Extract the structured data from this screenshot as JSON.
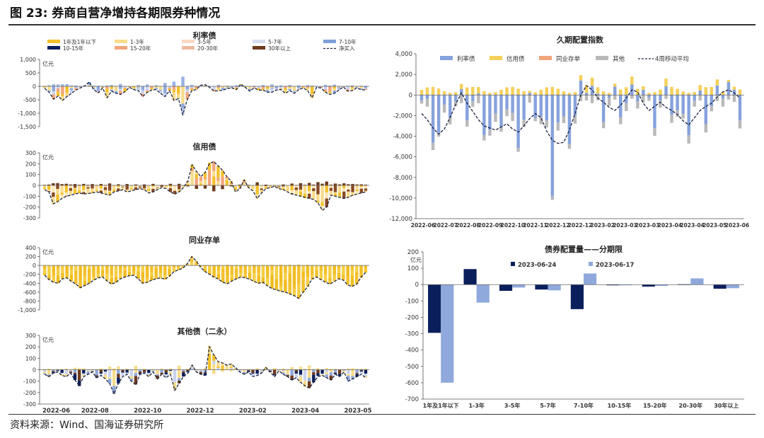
{
  "figure": {
    "title": "图 23: 券商自营净增持各期限券种情况",
    "source": "资料来源：Wind、国海证券研究所"
  },
  "colors": {
    "dark_navy": "#0b1f5c",
    "light_blue": "#8fa9dc",
    "yellow": "#f3c12c",
    "pale_yellow": "#f7dc8c",
    "salmon": "#f2a57b",
    "brown": "#6e3a1c",
    "gray": "#b5b5b5",
    "dashed_line": "#1c2340"
  },
  "chart_data": [
    {
      "id": "rate",
      "type": "bar",
      "stacked": true,
      "title": "利率债",
      "unit": "亿元",
      "ylim": [
        -1500,
        1000
      ],
      "yticks": [
        "1,000",
        "500",
        "0",
        "-500",
        "-1,000",
        "-1,500"
      ],
      "ytick_values": [
        1000,
        500,
        0,
        -500,
        -1000,
        -1500
      ],
      "legend": [
        "1年及1年以下",
        "1-3年",
        "3-5年",
        "5-7年",
        "7-10年",
        "10-15年",
        "15-20年",
        "20-30年",
        "30年以上",
        "净买入"
      ],
      "legend_colors": [
        "#f3c12c",
        "#f7dc8c",
        "#fbd9c4",
        "#d7dcee",
        "#7f9fd8",
        "#0b1f5c",
        "#f2a57b",
        "#f0b8a0",
        "#6e3a1c",
        "#1c2340"
      ],
      "net_series": [
        -80,
        -220,
        -480,
        -360,
        -520,
        -380,
        -260,
        -140,
        -60,
        20,
        160,
        -120,
        -240,
        -60,
        -420,
        -180,
        -260,
        -300,
        -200,
        -40,
        -120,
        -160,
        -380,
        -220,
        -140,
        -120,
        -260,
        -380,
        -160,
        -520,
        -460,
        -1050,
        -480,
        -160,
        -120,
        40,
        60,
        -40,
        -180,
        -160,
        -140,
        -80,
        -60,
        -120,
        80,
        -40,
        -180,
        -60,
        -140,
        -140,
        -220,
        -220,
        -140,
        -120,
        -260,
        -160,
        -260,
        -120,
        -60,
        -160,
        -420,
        -40,
        -60,
        -220,
        -300,
        -260,
        -140,
        -20,
        -180,
        -160,
        -60,
        -120,
        -140
      ]
    },
    {
      "id": "credit",
      "type": "bar",
      "stacked": true,
      "title": "信用债",
      "unit": "亿元",
      "ylim": [
        -300,
        300
      ],
      "yticks": [
        "300",
        "200",
        "100",
        "0",
        "-100",
        "-200",
        "-300"
      ],
      "ytick_values": [
        300,
        200,
        100,
        0,
        -100,
        -200,
        -300
      ],
      "net_series": [
        -40,
        -60,
        -170,
        -150,
        -120,
        -100,
        -90,
        -80,
        -70,
        -80,
        -75,
        -70,
        -60,
        -70,
        -80,
        -90,
        -60,
        -50,
        -40,
        -60,
        -50,
        -40,
        -30,
        -40,
        -70,
        -60,
        -40,
        -20,
        -30,
        -60,
        -80,
        -60,
        -20,
        40,
        190,
        130,
        80,
        120,
        200,
        220,
        180,
        140,
        80,
        40,
        -60,
        -30,
        50,
        -20,
        -50,
        -120,
        -70,
        -30,
        -20,
        -10,
        -30,
        -40,
        -60,
        -80,
        -90,
        -100,
        -110,
        -120,
        -130,
        -160,
        -230,
        -200,
        -90,
        -100,
        -110,
        -120,
        -110,
        -90,
        -80,
        -70,
        -60
      ]
    },
    {
      "id": "ncd",
      "type": "bar",
      "stacked": true,
      "title": "同业存单",
      "unit": "亿元",
      "ylim": [
        -1000,
        400
      ],
      "yticks": [
        "400",
        "200",
        "0",
        "-200",
        "-400",
        "-600",
        "-800",
        "-1,000"
      ],
      "ytick_values": [
        400,
        200,
        0,
        -200,
        -400,
        -600,
        -800,
        -1000
      ],
      "net_series": [
        -220,
        -320,
        -380,
        -400,
        -300,
        -280,
        -360,
        -420,
        -500,
        -450,
        -400,
        -330,
        -280,
        -260,
        -350,
        -420,
        -380,
        -300,
        -260,
        -230,
        -220,
        -300,
        -400,
        -380,
        -330,
        -300,
        -280,
        -310,
        -240,
        -140,
        -100,
        -60,
        40,
        200,
        100,
        -40,
        -140,
        -200,
        -260,
        -310,
        -380,
        -410,
        -350,
        -300,
        -260,
        -280,
        -310,
        -360,
        -400,
        -380,
        -460,
        -520,
        -550,
        -580,
        -600,
        -640,
        -680,
        -740,
        -600,
        -480,
        -300,
        -260,
        -320,
        -380,
        -420,
        -360,
        -300,
        -330,
        -440,
        -470,
        -420,
        -260,
        -160
      ]
    },
    {
      "id": "other",
      "type": "bar",
      "stacked": true,
      "title": "其他债（二永）",
      "unit": "亿元",
      "ylim": [
        -300,
        300
      ],
      "yticks": [
        "300",
        "200",
        "100",
        "0",
        "-100",
        "-200",
        "-300"
      ],
      "ytick_values": [
        300,
        200,
        100,
        0,
        -100,
        -200,
        -300
      ],
      "xticks": [
        "2022-06",
        "2022-08",
        "2022-10",
        "2022-12",
        "2023-02",
        "2023-04",
        "2023-05"
      ],
      "net_series": [
        -40,
        -60,
        -30,
        -20,
        -50,
        -60,
        -30,
        -90,
        -140,
        -60,
        -40,
        -20,
        -70,
        -50,
        -80,
        -120,
        -210,
        -120,
        -60,
        -40,
        -100,
        -130,
        -40,
        -30,
        -60,
        -20,
        -80,
        -40,
        -70,
        -40,
        -180,
        -120,
        -60,
        -30,
        40,
        -20,
        -40,
        -50,
        200,
        130,
        70,
        60,
        40,
        50,
        20,
        -20,
        -40,
        -20,
        -60,
        -50,
        -30,
        20,
        -20,
        -60,
        -10,
        -40,
        -60,
        -90,
        -70,
        -110,
        -140,
        -160,
        -110,
        -60,
        -50,
        -70,
        -90,
        -40,
        -60,
        -20,
        -100,
        -80,
        -60,
        -40,
        -70
      ]
    },
    {
      "id": "duration",
      "type": "bar",
      "stacked": true,
      "title": "久期配置指数",
      "ylim": [
        -12000,
        4000
      ],
      "yticks": [
        "4,000",
        "2,000",
        "0",
        "-2,000",
        "-4,000",
        "-6,000",
        "-8,000",
        "-10,000",
        "-12,000"
      ],
      "ytick_values": [
        4000,
        2000,
        0,
        -2000,
        -4000,
        -6000,
        -8000,
        -10000,
        -12000
      ],
      "xticks": [
        "2022-06",
        "2022-07",
        "2022-08",
        "2022-09",
        "2022-10",
        "2022-11",
        "2022-12",
        "2022-12",
        "2023-02",
        "2023-03",
        "2023-03",
        "2023-04",
        "2023-04",
        "2023-05",
        "2023-06"
      ],
      "legend": [
        "利率债",
        "信用债",
        "同业存单",
        "其他",
        "4周移动平均"
      ],
      "legend_colors": [
        "#86a2dc",
        "#f5cf5a",
        "#f2a57b",
        "#b9b9b9",
        "#1c2340"
      ],
      "ma4": [
        -1800,
        -2400,
        -3200,
        -3800,
        -3300,
        -2200,
        -900,
        200,
        -800,
        -1600,
        -2400,
        -3000,
        -3200,
        -3400,
        -3100,
        -2800,
        -3300,
        -3600,
        -3000,
        -2300,
        -1800,
        -2200,
        -3500,
        -4400,
        -4700,
        -4600,
        -3400,
        -1800,
        0,
        900,
        500,
        -300,
        -700,
        -1200,
        -1500,
        -1000,
        -300,
        500,
        300,
        -800,
        -1500,
        -1100,
        -700,
        -1200,
        -1500,
        -1900,
        -2500,
        -2900,
        -2200,
        -1500,
        -1100,
        -800,
        -200,
        300,
        500,
        200,
        -300
      ]
    },
    {
      "id": "allocation",
      "type": "bar",
      "title": "债券配置量——分期限",
      "unit": "亿元",
      "ylim": [
        -700,
        200
      ],
      "yticks": [
        "200",
        "100",
        "0",
        "-100",
        "-200",
        "-300",
        "-400",
        "-500",
        "-600",
        "-700"
      ],
      "ytick_values": [
        200,
        100,
        0,
        -100,
        -200,
        -300,
        -400,
        -500,
        -600,
        -700
      ],
      "categories": [
        "1年及1年以下",
        "1-3年",
        "3-5年",
        "5-7年",
        "7-10年",
        "10-15年",
        "15-20年",
        "20-30年",
        "30年以上"
      ],
      "series": [
        {
          "name": "2023-06-24",
          "color": "#0b1f5c",
          "values": [
            -295,
            95,
            -38,
            -30,
            -150,
            -3,
            -12,
            2,
            -25
          ]
        },
        {
          "name": "2023-06-17",
          "color": "#8fa9dc",
          "values": [
            -600,
            -110,
            -18,
            -35,
            68,
            -2,
            -8,
            38,
            -22
          ]
        }
      ]
    }
  ]
}
